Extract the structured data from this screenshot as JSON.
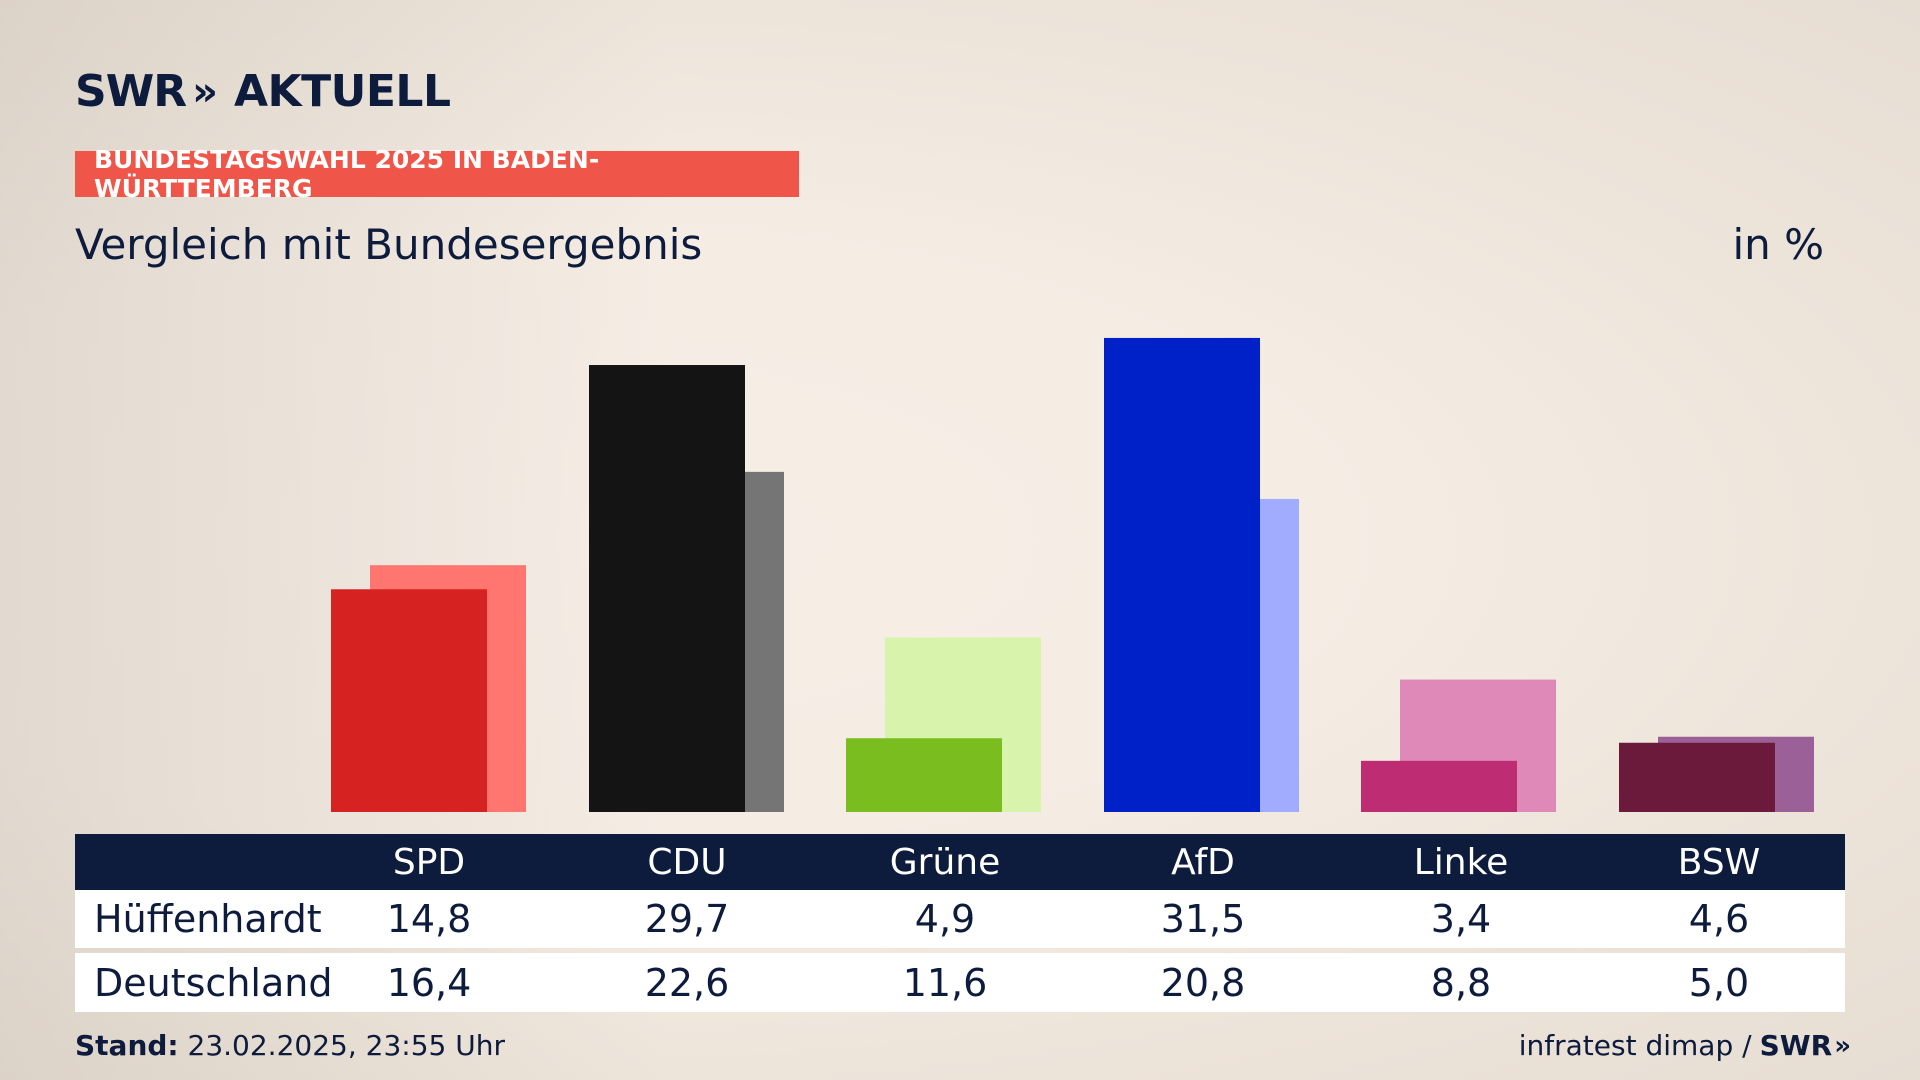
{
  "header": {
    "logo_text": "SWR",
    "logo_chevrons": "»",
    "logo_suffix": "AKTUELL",
    "banner": "BUNDESTAGSWAHL 2025 IN BADEN-WÜRTTEMBERG",
    "subtitle": "Vergleich mit Bundesergebnis",
    "unit": "in %"
  },
  "chart_data": {
    "type": "bar",
    "categories": [
      "SPD",
      "CDU",
      "Grüne",
      "AfD",
      "Linke",
      "BSW"
    ],
    "series": [
      {
        "name": "Hüffenhardt",
        "values": [
          14.8,
          29.7,
          4.9,
          31.5,
          3.4,
          4.6
        ]
      },
      {
        "name": "Deutschland",
        "values": [
          16.4,
          22.6,
          11.6,
          20.8,
          8.8,
          5.0
        ]
      }
    ],
    "colors": {
      "primary": [
        "#d72222",
        "#141414",
        "#79bd1e",
        "#0021c8",
        "#be2d73",
        "#6b1a3c"
      ],
      "secondary": [
        "#ff7570",
        "#757575",
        "#d8f4ac",
        "#a1acfe",
        "#df89b8",
        "#9b6098"
      ]
    }
  },
  "table": {
    "rows": [
      {
        "label": "Hüffenhardt",
        "values": [
          "14,8",
          "29,7",
          "4,9",
          "31,5",
          "3,4",
          "4,6"
        ]
      },
      {
        "label": "Deutschland",
        "values": [
          "16,4",
          "22,6",
          "11,6",
          "20,8",
          "8,8",
          "5,0"
        ]
      }
    ]
  },
  "footer": {
    "stand_label": "Stand:",
    "stand_value": " 23.02.2025, 23:55 Uhr",
    "source": "infratest dimap /",
    "source_logo": "SWR",
    "source_chevrons": "»"
  }
}
